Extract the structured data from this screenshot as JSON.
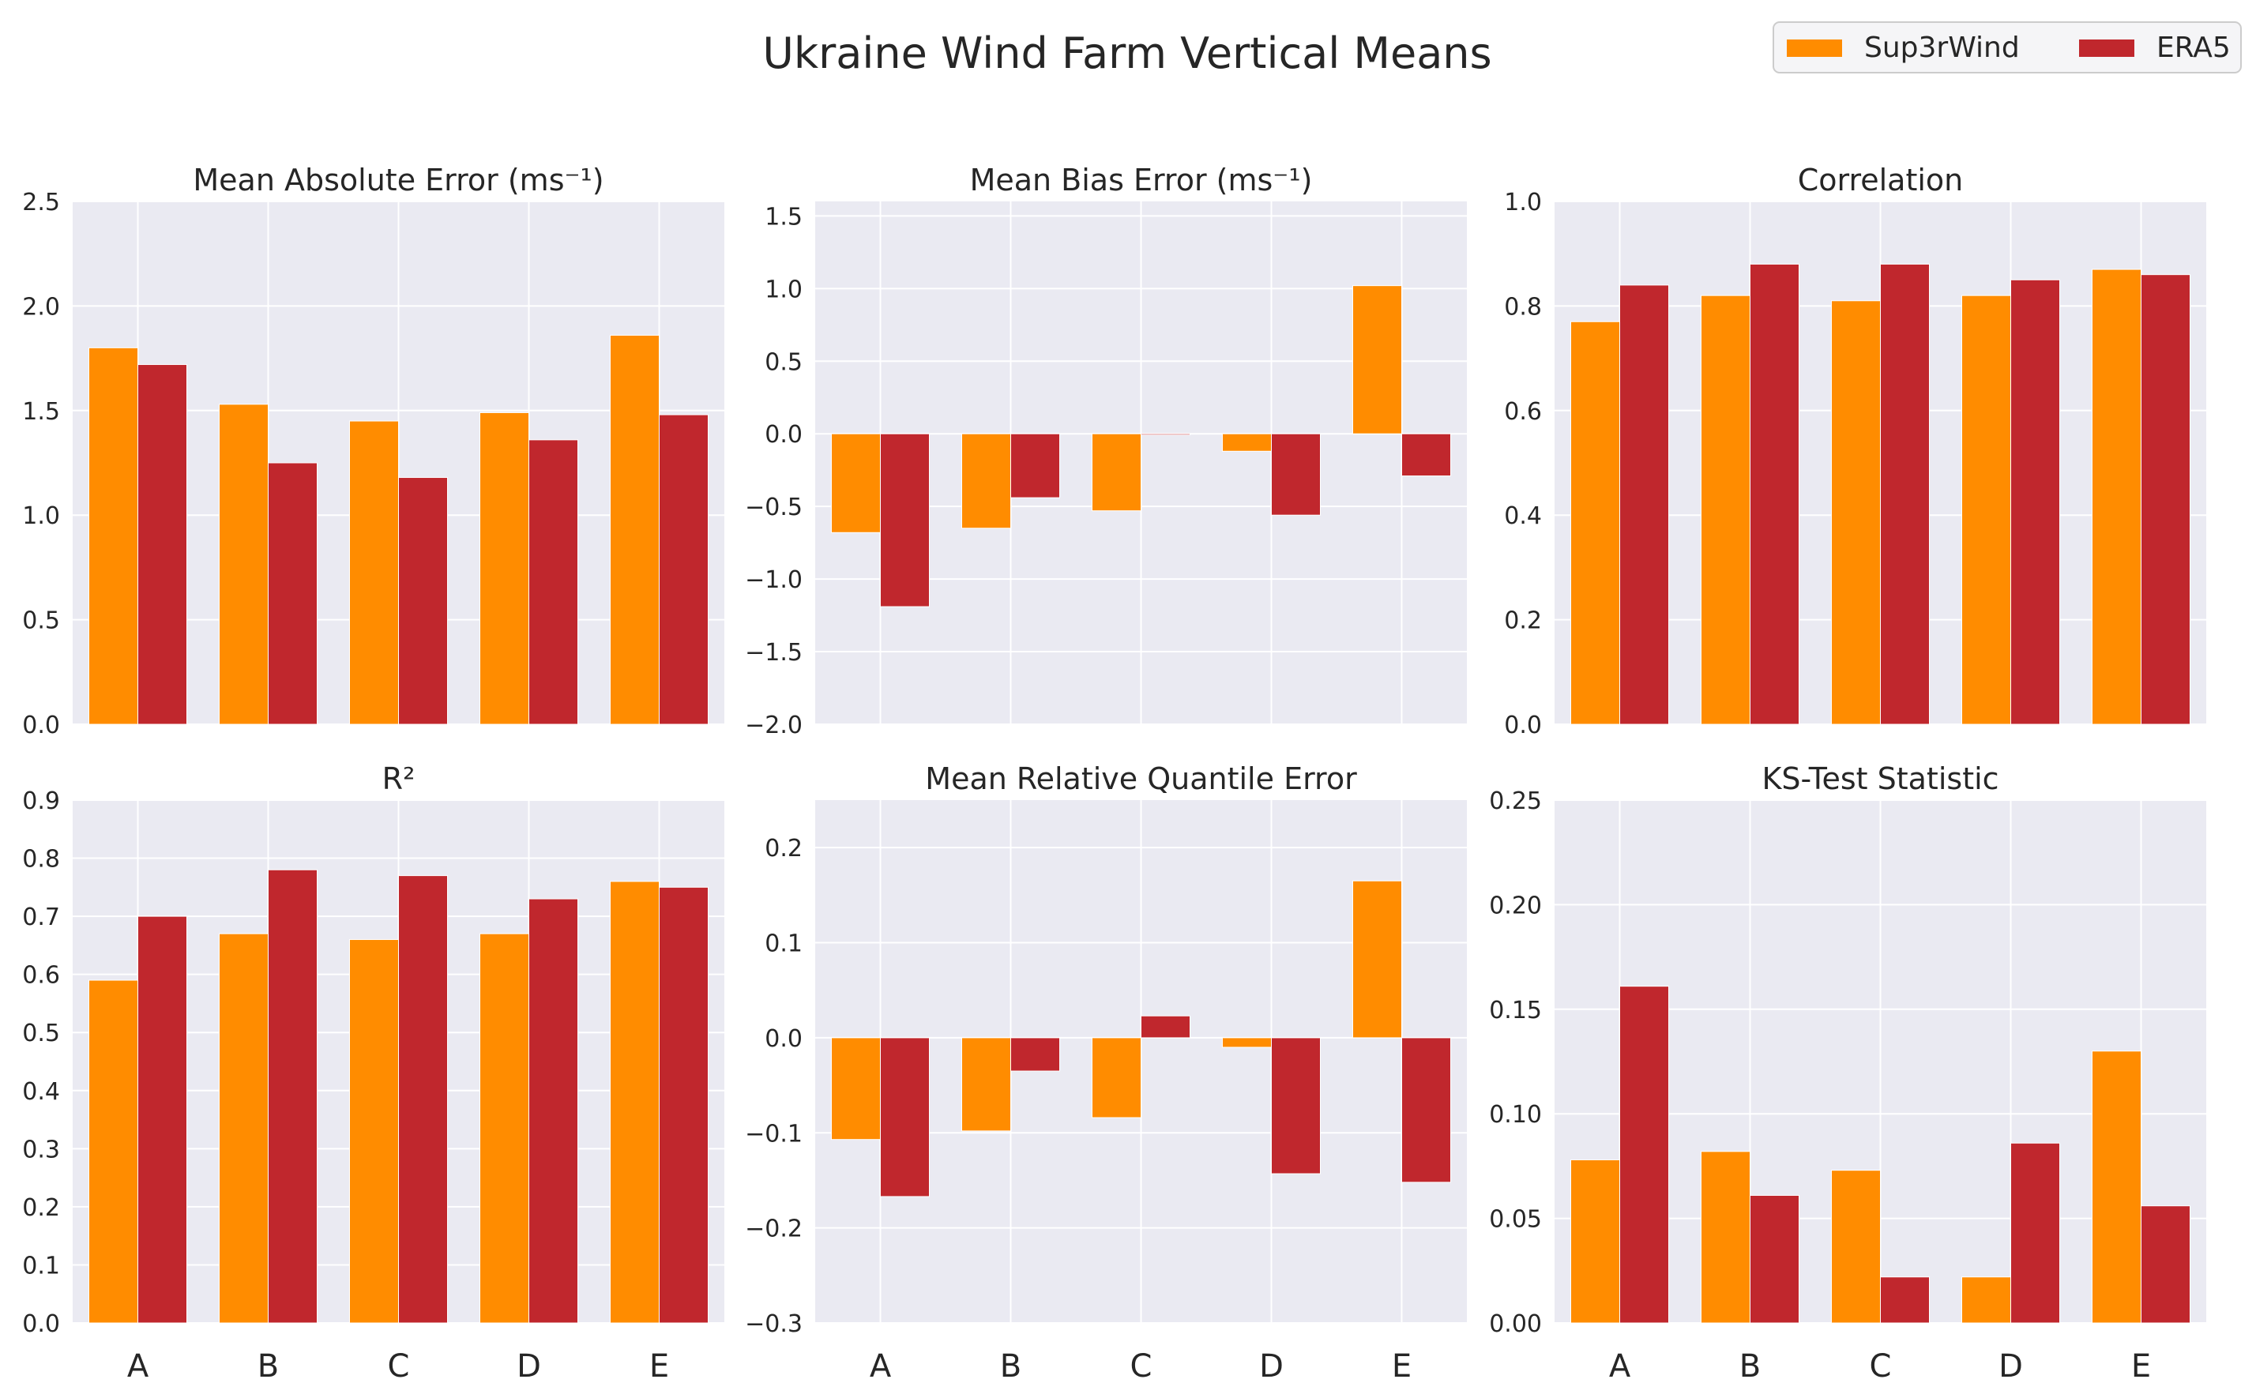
{
  "title": "Ukraine Wind Farm Vertical Means",
  "legend": {
    "position": "top-right",
    "entries": [
      {
        "name": "Sup3rWind",
        "color": "#ff8c00"
      },
      {
        "name": "ERA5",
        "color": "#c0272d"
      }
    ]
  },
  "categories": [
    "A",
    "B",
    "C",
    "D",
    "E"
  ],
  "chart_data": [
    {
      "type": "bar",
      "title": "Mean Absolute Error (ms⁻¹)",
      "xlabel": "",
      "ylabel": "",
      "ylim": [
        0,
        2.5
      ],
      "yticks": [
        "0.0",
        "0.5",
        "1.0",
        "1.5",
        "2.0",
        "2.5"
      ],
      "grid": true,
      "categories": [
        "A",
        "B",
        "C",
        "D",
        "E"
      ],
      "series": [
        {
          "name": "Sup3rWind",
          "values": [
            1.8,
            1.53,
            1.45,
            1.49,
            1.86
          ]
        },
        {
          "name": "ERA5",
          "values": [
            1.72,
            1.25,
            1.18,
            1.36,
            1.48
          ]
        }
      ]
    },
    {
      "type": "bar",
      "title": "Mean Bias Error (ms⁻¹)",
      "xlabel": "",
      "ylabel": "",
      "ylim": [
        -2.0,
        1.6
      ],
      "yticks": [
        "−2.0",
        "−1.5",
        "−1.0",
        "−0.5",
        "0.0",
        "0.5",
        "1.0",
        "1.5"
      ],
      "grid": true,
      "categories": [
        "A",
        "B",
        "C",
        "D",
        "E"
      ],
      "series": [
        {
          "name": "Sup3rWind",
          "values": [
            -0.68,
            -0.65,
            -0.53,
            -0.12,
            1.02
          ]
        },
        {
          "name": "ERA5",
          "values": [
            -1.19,
            -0.44,
            -0.005,
            -0.56,
            -0.29
          ]
        }
      ]
    },
    {
      "type": "bar",
      "title": "Correlation",
      "xlabel": "",
      "ylabel": "",
      "ylim": [
        0,
        1.0
      ],
      "yticks": [
        "0.0",
        "0.2",
        "0.4",
        "0.6",
        "0.8",
        "1.0"
      ],
      "grid": true,
      "categories": [
        "A",
        "B",
        "C",
        "D",
        "E"
      ],
      "series": [
        {
          "name": "Sup3rWind",
          "values": [
            0.77,
            0.82,
            0.81,
            0.82,
            0.87
          ]
        },
        {
          "name": "ERA5",
          "values": [
            0.84,
            0.88,
            0.88,
            0.85,
            0.86
          ]
        }
      ]
    },
    {
      "type": "bar",
      "title": "R²",
      "xlabel": "",
      "ylabel": "",
      "ylim": [
        0,
        0.9
      ],
      "yticks": [
        "0.0",
        "0.1",
        "0.2",
        "0.3",
        "0.4",
        "0.5",
        "0.6",
        "0.7",
        "0.8",
        "0.9"
      ],
      "grid": true,
      "categories": [
        "A",
        "B",
        "C",
        "D",
        "E"
      ],
      "series": [
        {
          "name": "Sup3rWind",
          "values": [
            0.59,
            0.67,
            0.66,
            0.67,
            0.76
          ]
        },
        {
          "name": "ERA5",
          "values": [
            0.7,
            0.78,
            0.77,
            0.73,
            0.75
          ]
        }
      ]
    },
    {
      "type": "bar",
      "title": "Mean Relative Quantile Error",
      "xlabel": "",
      "ylabel": "",
      "ylim": [
        -0.3,
        0.25
      ],
      "yticks": [
        "−0.3",
        "−0.2",
        "−0.1",
        "0.0",
        "0.1",
        "0.2"
      ],
      "grid": true,
      "categories": [
        "A",
        "B",
        "C",
        "D",
        "E"
      ],
      "series": [
        {
          "name": "Sup3rWind",
          "values": [
            -0.107,
            -0.098,
            -0.084,
            -0.01,
            0.165
          ]
        },
        {
          "name": "ERA5",
          "values": [
            -0.167,
            -0.035,
            0.023,
            -0.143,
            -0.152
          ]
        }
      ]
    },
    {
      "type": "bar",
      "title": "KS-Test Statistic",
      "xlabel": "",
      "ylabel": "",
      "ylim": [
        0,
        0.25
      ],
      "yticks": [
        "0.00",
        "0.05",
        "0.10",
        "0.15",
        "0.20",
        "0.25"
      ],
      "grid": true,
      "categories": [
        "A",
        "B",
        "C",
        "D",
        "E"
      ],
      "series": [
        {
          "name": "Sup3rWind",
          "values": [
            0.078,
            0.082,
            0.073,
            0.022,
            0.13
          ]
        },
        {
          "name": "ERA5",
          "values": [
            0.161,
            0.061,
            0.022,
            0.086,
            0.056
          ]
        }
      ]
    }
  ]
}
